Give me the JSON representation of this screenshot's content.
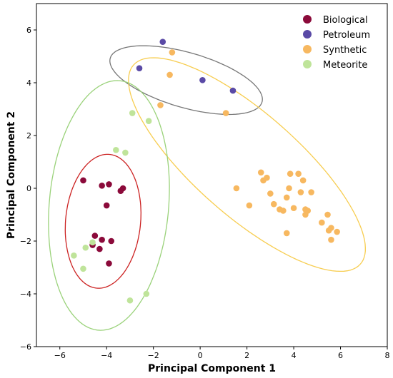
{
  "chart_data": {
    "type": "scatter",
    "title": "",
    "xlabel": "Principal Component 1",
    "ylabel": "Principal Component 2",
    "xlim": [
      -7,
      8
    ],
    "ylim": [
      -6,
      7
    ],
    "xticks": [
      -6,
      -4,
      -2,
      0,
      2,
      4,
      6,
      8
    ],
    "yticks": [
      -6,
      -4,
      -2,
      0,
      2,
      4,
      6
    ],
    "grid": false,
    "legend_position": "top-right",
    "series": [
      {
        "name": "Biological",
        "color": "#8b0a3a",
        "points": [
          [
            -5.0,
            0.3
          ],
          [
            -4.2,
            0.1
          ],
          [
            -3.9,
            0.15
          ],
          [
            -3.4,
            -0.1
          ],
          [
            -3.3,
            0.0
          ],
          [
            -4.0,
            -0.65
          ],
          [
            -4.5,
            -1.8
          ],
          [
            -4.2,
            -1.95
          ],
          [
            -3.8,
            -2.0
          ],
          [
            -4.6,
            -2.15
          ],
          [
            -4.3,
            -2.3
          ],
          [
            -3.9,
            -2.85
          ]
        ]
      },
      {
        "name": "Petroleum",
        "color": "#5a4aa6",
        "points": [
          [
            -1.6,
            5.55
          ],
          [
            -2.6,
            4.55
          ],
          [
            0.1,
            4.1
          ],
          [
            1.4,
            3.7
          ]
        ]
      },
      {
        "name": "Synthetic",
        "color": "#f7b860",
        "points": [
          [
            -1.2,
            5.15
          ],
          [
            -1.3,
            4.3
          ],
          [
            -1.7,
            3.15
          ],
          [
            1.1,
            2.85
          ],
          [
            1.55,
            0.0
          ],
          [
            2.1,
            -0.65
          ],
          [
            2.6,
            0.6
          ],
          [
            2.7,
            0.3
          ],
          [
            2.85,
            0.4
          ],
          [
            3.0,
            -0.2
          ],
          [
            3.15,
            -0.6
          ],
          [
            3.4,
            -0.8
          ],
          [
            3.55,
            -0.85
          ],
          [
            3.7,
            -0.35
          ],
          [
            3.8,
            0.0
          ],
          [
            3.85,
            0.55
          ],
          [
            4.0,
            -0.75
          ],
          [
            4.2,
            0.55
          ],
          [
            4.3,
            -0.15
          ],
          [
            4.4,
            0.3
          ],
          [
            4.5,
            -0.8
          ],
          [
            4.5,
            -1.0
          ],
          [
            4.6,
            -0.85
          ],
          [
            4.75,
            -0.15
          ],
          [
            3.7,
            -1.7
          ],
          [
            5.2,
            -1.3
          ],
          [
            5.45,
            -1.0
          ],
          [
            5.5,
            -1.6
          ],
          [
            5.6,
            -1.5
          ],
          [
            5.6,
            -1.95
          ],
          [
            5.85,
            -1.65
          ]
        ]
      },
      {
        "name": "Meteorite",
        "color": "#bfe49a",
        "points": [
          [
            -2.9,
            2.85
          ],
          [
            -2.2,
            2.55
          ],
          [
            -3.6,
            1.45
          ],
          [
            -3.2,
            1.35
          ],
          [
            -5.4,
            -2.55
          ],
          [
            -4.9,
            -2.25
          ],
          [
            -4.6,
            -2.05
          ],
          [
            -5.0,
            -3.05
          ],
          [
            -3.0,
            -4.25
          ],
          [
            -2.3,
            -4.0
          ]
        ]
      }
    ],
    "ellipses": [
      {
        "series": "Biological",
        "color": "#cc2222",
        "cx": -4.15,
        "cy": -1.25,
        "rx": 1.6,
        "ry": 2.55,
        "angle": -7
      },
      {
        "series": "Petroleum",
        "color": "#777777",
        "cx": -0.6,
        "cy": 4.1,
        "rx": 3.35,
        "ry": 1.05,
        "angle": -14
      },
      {
        "series": "Synthetic",
        "color": "#f7cd50",
        "cx": 2.0,
        "cy": 0.9,
        "rx": 6.15,
        "ry": 2.05,
        "angle": -37
      },
      {
        "series": "Meteorite",
        "color": "#9ad27a",
        "cx": -3.9,
        "cy": -0.65,
        "rx": 2.55,
        "ry": 4.75,
        "angle": -6
      }
    ]
  }
}
